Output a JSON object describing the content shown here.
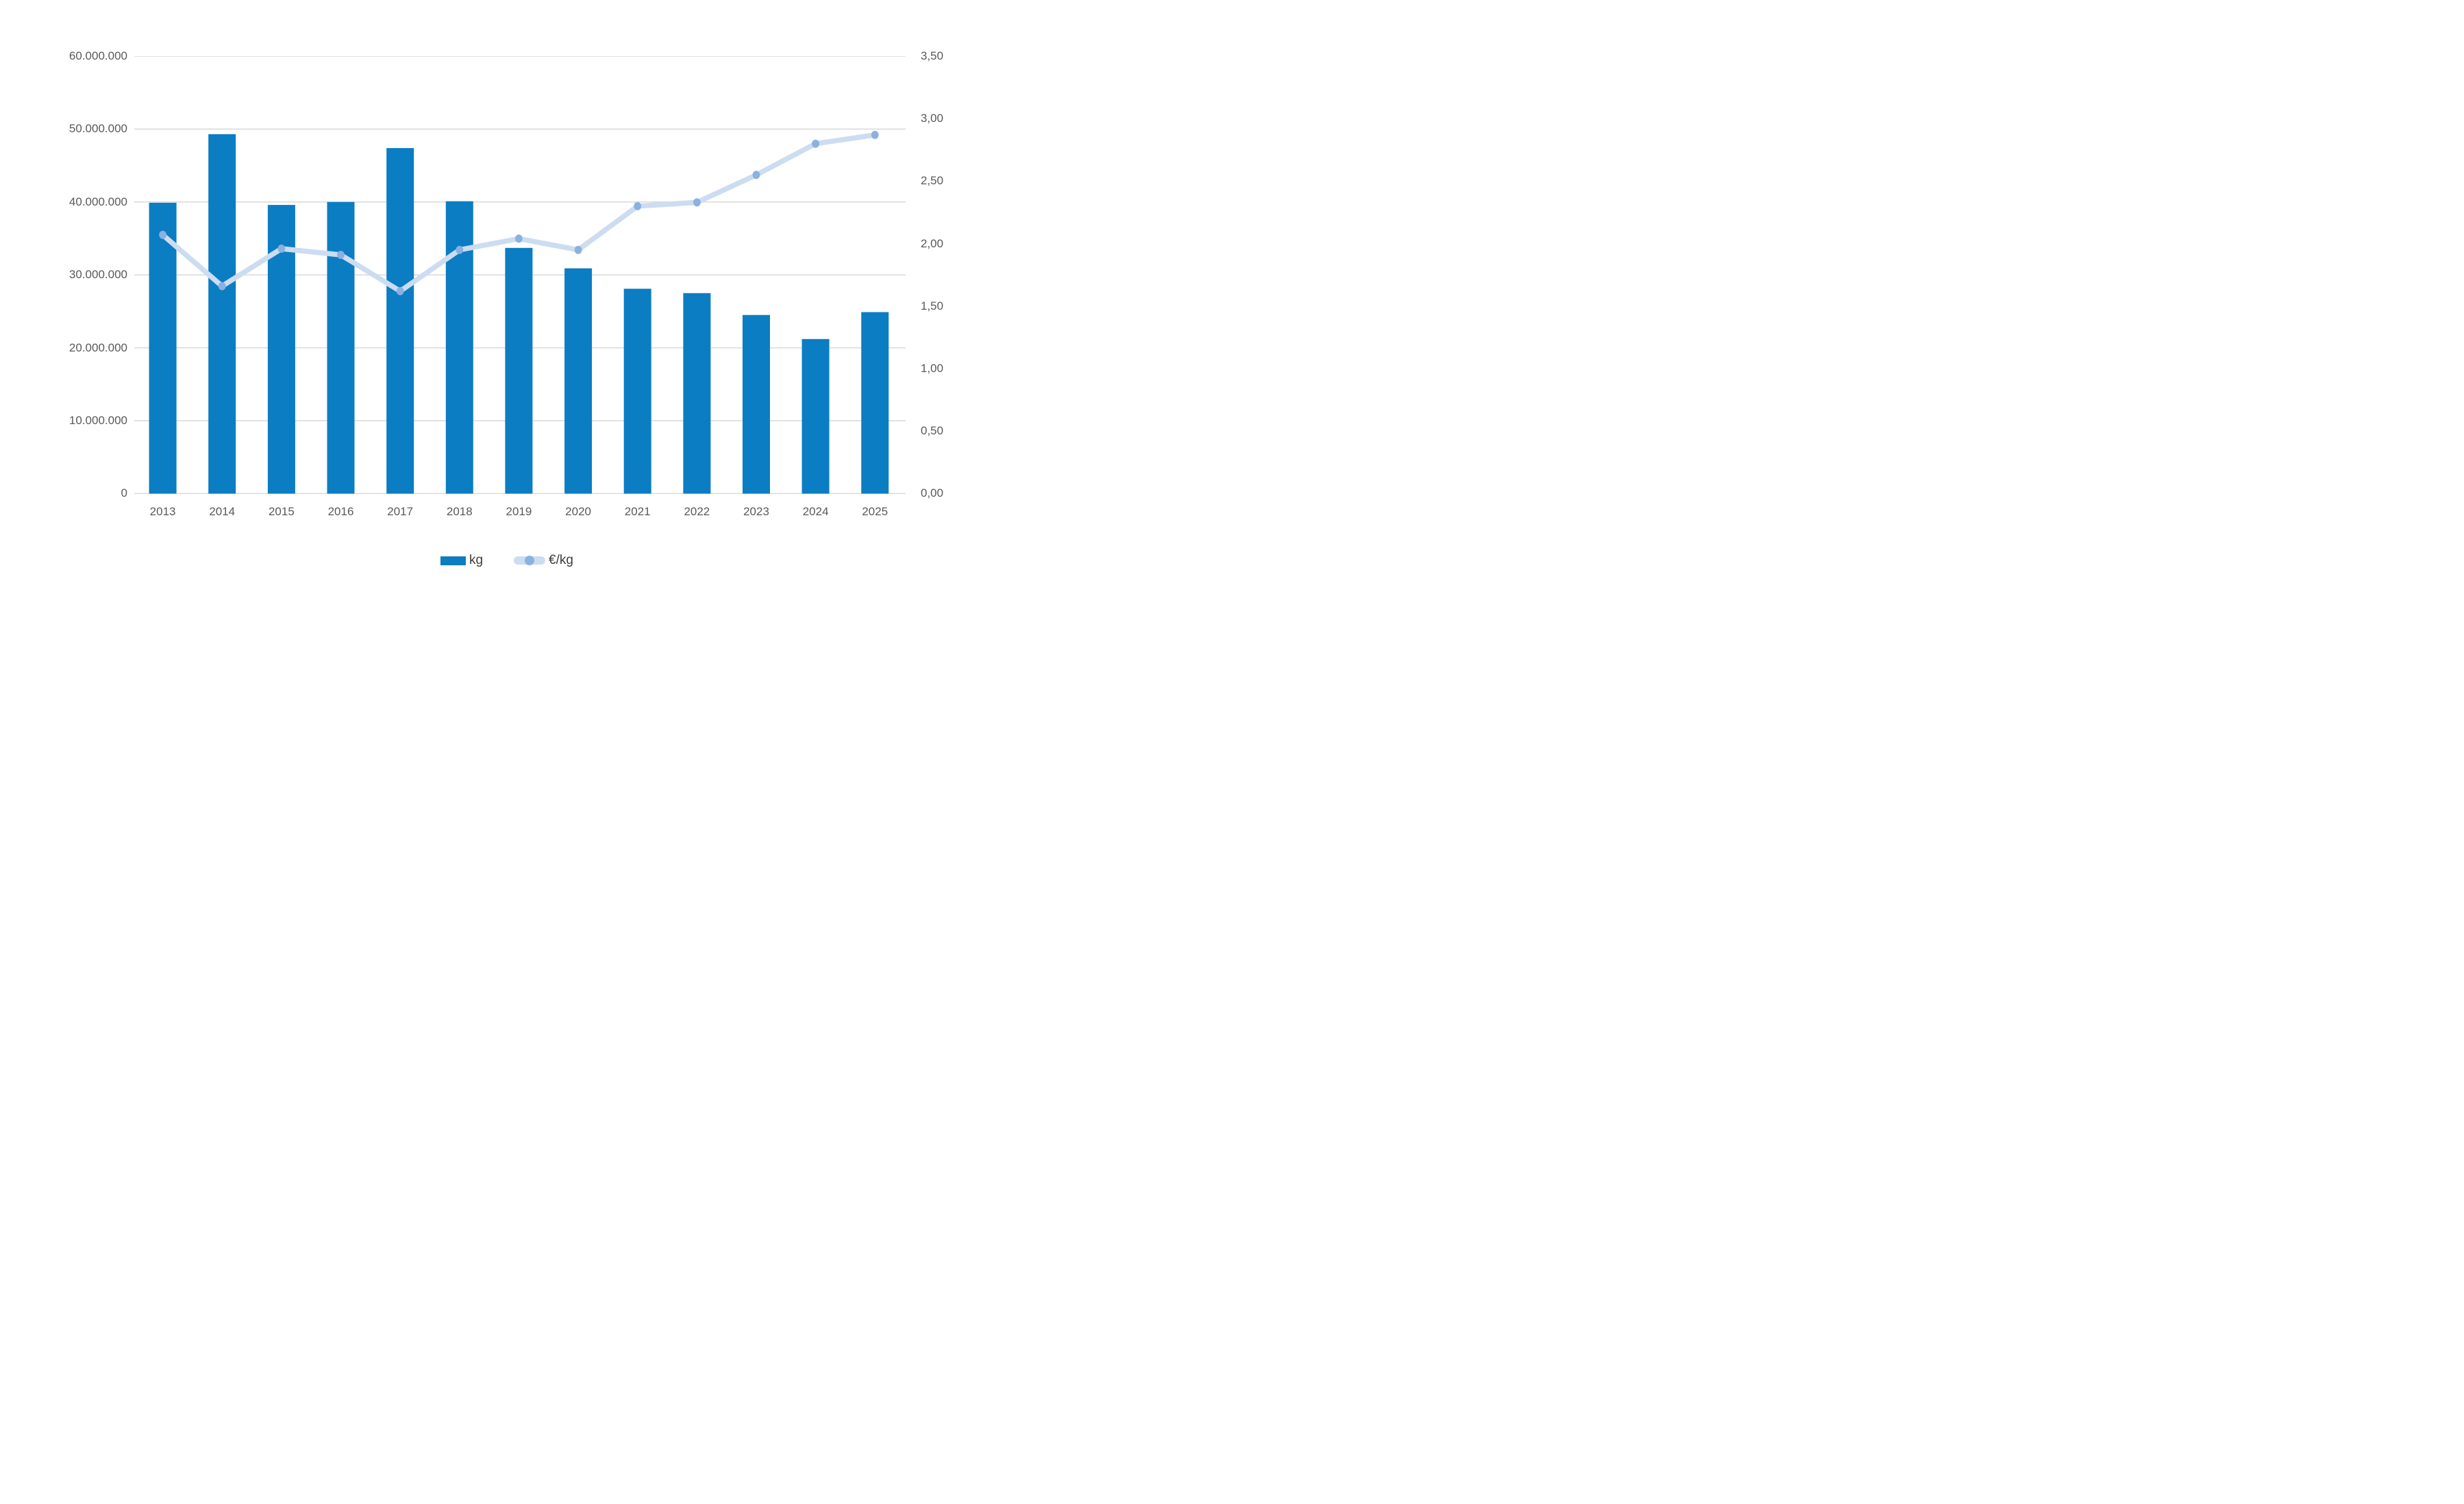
{
  "chart_data": {
    "type": "combo-bar-line",
    "categories": [
      "2013",
      "2014",
      "2015",
      "2016",
      "2017",
      "2018",
      "2019",
      "2020",
      "2021",
      "2022",
      "2023",
      "2024",
      "2025"
    ],
    "series": [
      {
        "name": "kg",
        "type": "bar",
        "axis": "left",
        "values": [
          39900000,
          49300000,
          39600000,
          40000000,
          47400000,
          40100000,
          33700000,
          30900000,
          28100000,
          27500000,
          24500000,
          21200000,
          24900000
        ]
      },
      {
        "name": "€/kg",
        "type": "line",
        "axis": "right",
        "values": [
          2.07,
          1.66,
          1.96,
          1.91,
          1.62,
          1.95,
          2.04,
          1.95,
          2.3,
          2.33,
          2.55,
          2.8,
          2.87
        ]
      }
    ],
    "left_axis": {
      "min": 0,
      "max": 60000000,
      "tick_labels": [
        "60.000.000",
        "50.000.000",
        "40.000.000",
        "30.000.000",
        "20.000.000",
        "10.000.000",
        "0"
      ]
    },
    "right_axis": {
      "min": 0,
      "max": 3.5,
      "tick_labels": [
        "3,50",
        "3,00",
        "2,50",
        "2,00",
        "1,50",
        "1,00",
        "0,50",
        "0,00"
      ]
    },
    "grid": "horizontal",
    "legend_position": "bottom",
    "title": ""
  },
  "colors": {
    "bar": "#0b7dc2",
    "line": "#ccdcf1",
    "marker": "#8ab1e0",
    "grid": "#d9d9d9",
    "axis_text": "#595959",
    "legend_text": "#3d3d3d",
    "background": "#ffffff"
  }
}
